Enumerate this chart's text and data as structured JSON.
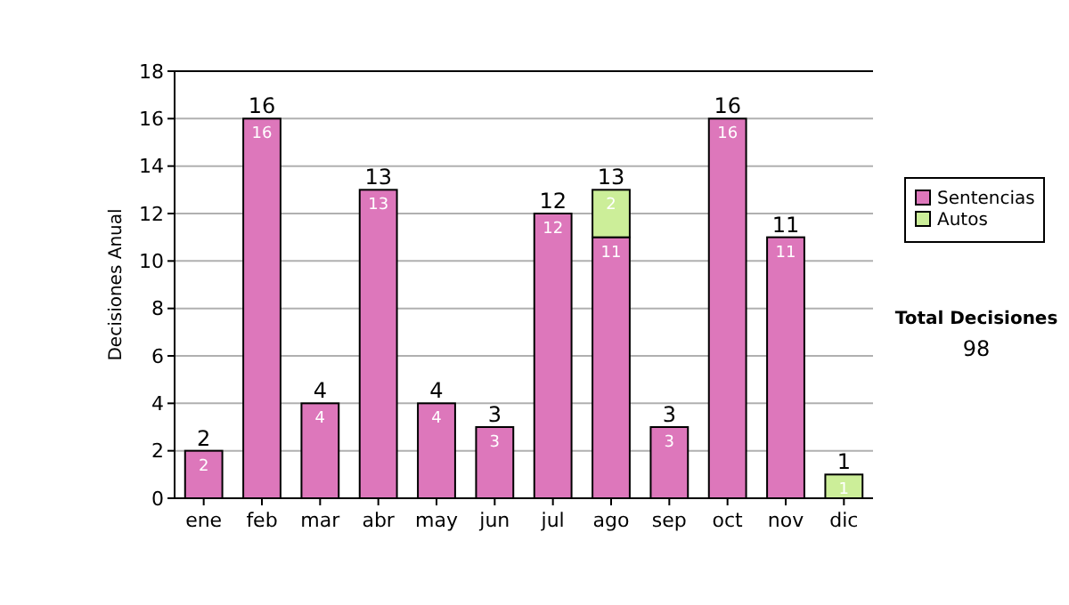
{
  "chart_data": {
    "type": "bar",
    "ylabel": "Decisiones Anual",
    "categories": [
      "ene",
      "feb",
      "mar",
      "abr",
      "may",
      "jun",
      "jul",
      "ago",
      "sep",
      "oct",
      "nov",
      "dic"
    ],
    "stacked": true,
    "series": [
      {
        "name": "Sentencias",
        "color": "#dd77bb",
        "values": [
          2,
          16,
          4,
          13,
          4,
          3,
          12,
          11,
          3,
          16,
          11,
          0
        ],
        "value_labels": [
          "2",
          "16",
          "4",
          "13",
          "4",
          "3",
          "12",
          "11",
          "3",
          "16",
          "11",
          null
        ]
      },
      {
        "name": "Autos",
        "color": "#ccee99",
        "values": [
          0,
          0,
          0,
          0,
          0,
          0,
          0,
          2,
          0,
          0,
          0,
          1
        ],
        "value_labels": [
          null,
          null,
          null,
          null,
          null,
          null,
          null,
          "2",
          null,
          null,
          null,
          "1"
        ]
      }
    ],
    "totals": [
      "2",
      "16",
      "4",
      "13",
      "4",
      "3",
      "12",
      "13",
      "3",
      "16",
      "11",
      "1"
    ],
    "ylim": [
      0,
      18
    ],
    "yticks": [
      0,
      2,
      4,
      6,
      8,
      10,
      12,
      14,
      16,
      18
    ],
    "grid": "y",
    "legend": "right",
    "annotations": [
      "Total Decisiones",
      "98"
    ]
  }
}
